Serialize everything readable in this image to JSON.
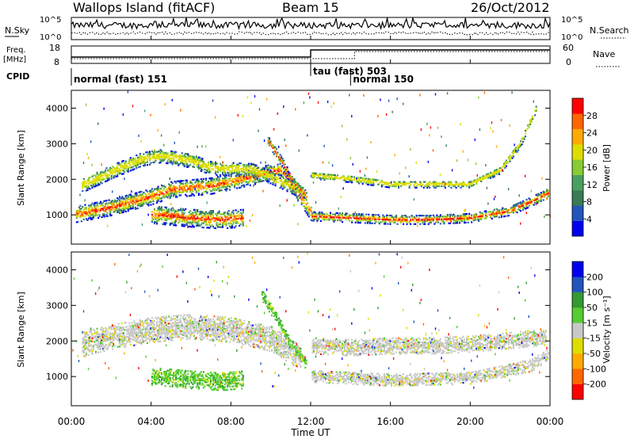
{
  "header": {
    "station": "Wallops Island (fitACF)",
    "beam": "Beam 15",
    "date": "26/Oct/2012"
  },
  "chart_data": [
    {
      "type": "line",
      "panel": "noise",
      "left_label": "N.Sky",
      "right_label": "N.Search",
      "left_ticks": [
        "10^5",
        "10^0"
      ],
      "right_ticks": [
        "10^5",
        "10^0"
      ],
      "scale": "log",
      "ylim": [
        1,
        100000
      ]
    },
    {
      "type": "line",
      "panel": "frequency",
      "left_label": "Freq.",
      "left_unit": "[MHz]",
      "right_label": "Nave",
      "left_ticks": [
        "18",
        "8"
      ],
      "right_ticks": [
        "60",
        "0"
      ],
      "freq_range_mhz": [
        8,
        18
      ],
      "nave_range": [
        0,
        60
      ],
      "step_hour": 12.0,
      "nave_step_hour": 14.2
    },
    {
      "type": "table",
      "panel": "cpid",
      "label": "CPID",
      "segments": [
        {
          "label": "normal (fast) 151",
          "start_hour": 0,
          "end_hour": 12.0
        },
        {
          "label": "tau (fast) 503",
          "start_hour": 12.0,
          "end_hour": 14.0
        },
        {
          "label": "normal 150",
          "start_hour": 14.0,
          "end_hour": 24.0
        }
      ]
    },
    {
      "type": "heatmap",
      "panel": "power",
      "ylabel": "Slant Range [km]",
      "yticks": [
        1000,
        2000,
        3000,
        4000
      ],
      "ylim": [
        180,
        4500
      ],
      "colorbar_label": "Power [dB]",
      "colorbar_ticks": [
        "28",
        "24",
        "20",
        "16",
        "12",
        "8",
        "4"
      ],
      "clim": [
        0,
        32
      ],
      "colors": [
        "#0000ee",
        "#2255bb",
        "#3a7a55",
        "#4aa060",
        "#88cc33",
        "#dddd00",
        "#ffaa00",
        "#ff6600",
        "#ff0000"
      ],
      "echo_bands": [
        {
          "name": "band-a",
          "points": [
            [
              0.2,
              1000
            ],
            [
              2,
              1200
            ],
            [
              4,
              1500
            ],
            [
              5,
              1700
            ],
            [
              7,
              1800
            ],
            [
              9,
              2050
            ],
            [
              10.5,
              2250
            ],
            [
              11.6,
              1400
            ],
            [
              12,
              1050
            ]
          ],
          "width_km": 450
        },
        {
          "name": "band-b",
          "points": [
            [
              0.5,
              1800
            ],
            [
              2,
              2200
            ],
            [
              3.5,
              2550
            ],
            [
              4.5,
              2650
            ],
            [
              6,
              2500
            ],
            [
              7,
              2300
            ],
            [
              9,
              2250
            ],
            [
              10,
              2050
            ],
            [
              11.5,
              1650
            ]
          ],
          "width_km": 380
        },
        {
          "name": "band-c",
          "points": [
            [
              4,
              1000
            ],
            [
              5,
              950
            ],
            [
              6,
              900
            ],
            [
              7.5,
              850
            ],
            [
              8.6,
              900
            ]
          ],
          "width_km": 500
        },
        {
          "name": "band-d",
          "points": [
            [
              12,
              950
            ],
            [
              14,
              900
            ],
            [
              16,
              850
            ],
            [
              18,
              850
            ],
            [
              20,
              900
            ],
            [
              22,
              1100
            ],
            [
              23,
              1350
            ],
            [
              23.9,
              1600
            ]
          ],
          "width_km": 250
        },
        {
          "name": "band-e",
          "points": [
            [
              12,
              2100
            ],
            [
              14,
              2000
            ],
            [
              16,
              1850
            ],
            [
              18,
              1850
            ],
            [
              20,
              1850
            ],
            [
              21.5,
              2250
            ],
            [
              22.5,
              3000
            ],
            [
              23.3,
              4000
            ]
          ],
          "width_km": 200
        },
        {
          "name": "band-f",
          "points": [
            [
              9.8,
              3100
            ],
            [
              10.5,
              2500
            ],
            [
              11.1,
              1900
            ],
            [
              11.8,
              1500
            ]
          ],
          "width_km": 250
        }
      ]
    },
    {
      "type": "heatmap",
      "panel": "velocity",
      "ylabel": "Slant Range [km]",
      "yticks": [
        1000,
        2000,
        3000,
        4000
      ],
      "ylim": [
        180,
        4500
      ],
      "colorbar_label": "Velocity [m s⁻¹]",
      "colorbar_ticks": [
        "200",
        "100",
        "50",
        "15",
        "-15",
        "-50",
        "-100",
        "-200"
      ],
      "clim": [
        -250,
        250
      ],
      "colors": [
        "#ff0000",
        "#ff6600",
        "#ffaa00",
        "#dddd00",
        "#c8c8c8",
        "#55cc33",
        "#339933",
        "#2255bb",
        "#0000ee"
      ],
      "ground_scatter_color": "#c8c8c8",
      "echo_bands": [
        {
          "name": "vel-a",
          "points": [
            [
              0.5,
              1900
            ],
            [
              2,
              2100
            ],
            [
              4,
              2300
            ],
            [
              6,
              2400
            ],
            [
              8,
              2300
            ],
            [
              10,
              2050
            ],
            [
              11.5,
              1500
            ]
          ],
          "width_km": 700
        },
        {
          "name": "vel-b",
          "points": [
            [
              4,
              1000
            ],
            [
              5,
              950
            ],
            [
              6,
              900
            ],
            [
              7.5,
              850
            ],
            [
              8.6,
              900
            ]
          ],
          "width_km": 500
        },
        {
          "name": "vel-c",
          "points": [
            [
              9.5,
              3300
            ],
            [
              10.3,
              2600
            ],
            [
              11,
              1900
            ],
            [
              11.8,
              1300
            ]
          ],
          "width_km": 300
        },
        {
          "name": "vel-d",
          "points": [
            [
              12,
              1850
            ],
            [
              14,
              1800
            ],
            [
              16,
              1850
            ],
            [
              18,
              1850
            ],
            [
              20,
              1900
            ],
            [
              22,
              2000
            ],
            [
              23.8,
              2100
            ]
          ],
          "width_km": 450
        },
        {
          "name": "vel-e",
          "points": [
            [
              12,
              1000
            ],
            [
              16,
              900
            ],
            [
              20,
              950
            ],
            [
              23,
              1300
            ],
            [
              23.9,
              1600
            ]
          ],
          "width_km": 350
        }
      ]
    },
    {
      "type": "axis",
      "panel": "time-axis",
      "xlabel": "Time UT",
      "xticks": [
        "00:00",
        "04:00",
        "08:00",
        "12:00",
        "16:00",
        "20:00",
        "00:00"
      ],
      "xlim_hours": [
        0,
        24
      ]
    }
  ]
}
